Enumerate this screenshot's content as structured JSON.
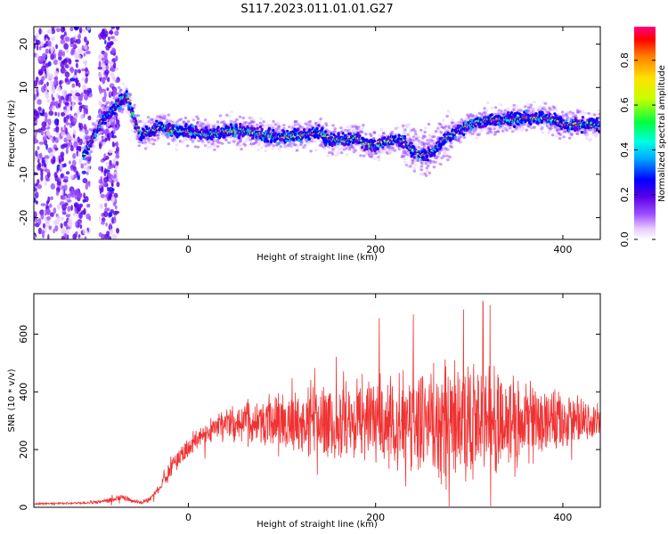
{
  "figure": {
    "title": "S117.2023.011.01.01.G27"
  },
  "colors": {
    "snr_line": "#f03232",
    "background": "#ffffff",
    "frame": "#000000"
  },
  "chart_data": [
    {
      "type": "heatmap",
      "title": "S117.2023.011.01.01.G27",
      "xlabel": "Height of straight line (km)",
      "ylabel": "Frequency (Hz)",
      "xlim": [
        -165,
        440
      ],
      "ylim": [
        -25,
        24
      ],
      "xticks": [
        0,
        200,
        400
      ],
      "yticks": [
        -20,
        -10,
        0,
        10,
        20
      ],
      "colorbar": {
        "label": "Normalized spectral amplitude",
        "range": [
          0,
          0.95
        ],
        "ticks": [
          0.0,
          0.2,
          0.4,
          0.6,
          0.8
        ],
        "colormap": [
          "#ffffff",
          "#e6ccff",
          "#9b4dff",
          "#5a00e6",
          "#0000ff",
          "#00aaff",
          "#00ffe0",
          "#00ff40",
          "#c8ff00",
          "#ffe000",
          "#ff8000",
          "#ff0000",
          "#ff0080"
        ]
      },
      "ridge": {
        "x": [
          -110,
          -100,
          -90,
          -80,
          -72,
          -66,
          -60,
          -55,
          -50,
          -40,
          -30,
          -20,
          0,
          20,
          40,
          60,
          80,
          100,
          120,
          140,
          150,
          160,
          170,
          180,
          190,
          200,
          210,
          220,
          230,
          240,
          250,
          260,
          270,
          280,
          290,
          300,
          320,
          340,
          360,
          380,
          390,
          400,
          420,
          440
        ],
        "y": [
          -5,
          -1,
          3,
          5,
          7,
          8,
          4,
          1,
          -1,
          0,
          1,
          0,
          0,
          -1,
          0,
          0,
          -1,
          -1.5,
          -1,
          -0.5,
          -2,
          -2,
          -2,
          -1.5,
          -3,
          -3.5,
          -2.5,
          -2,
          -2.5,
          -4.5,
          -5.5,
          -5,
          -2.5,
          -1,
          0.5,
          1.5,
          2.5,
          2.5,
          3,
          3,
          2.5,
          1.5,
          1.5,
          1.5
        ]
      }
    },
    {
      "type": "line",
      "xlabel": "Height of straight line (km)",
      "ylabel": "SNR (10 * v/v)",
      "xlim": [
        -165,
        440
      ],
      "ylim": [
        0,
        740
      ],
      "xticks": [
        0,
        200,
        400
      ],
      "yticks": [
        0,
        200,
        400,
        600
      ],
      "envelope": {
        "x": [
          -165,
          -120,
          -90,
          -80,
          -70,
          -60,
          -50,
          -40,
          -30,
          -20,
          -10,
          0,
          10,
          20,
          30,
          40,
          60,
          80,
          100,
          150,
          200,
          250,
          280,
          300,
          320,
          350,
          380,
          410,
          440
        ],
        "mean": [
          12,
          14,
          20,
          28,
          35,
          22,
          15,
          30,
          70,
          130,
          175,
          210,
          240,
          260,
          280,
          285,
          290,
          300,
          300,
          305,
          300,
          300,
          290,
          290,
          300,
          300,
          300,
          300,
          300
        ],
        "spread": [
          4,
          5,
          10,
          15,
          18,
          10,
          8,
          15,
          25,
          40,
          50,
          55,
          60,
          65,
          70,
          80,
          100,
          130,
          160,
          200,
          240,
          290,
          320,
          330,
          300,
          240,
          180,
          130,
          100
        ]
      }
    }
  ]
}
